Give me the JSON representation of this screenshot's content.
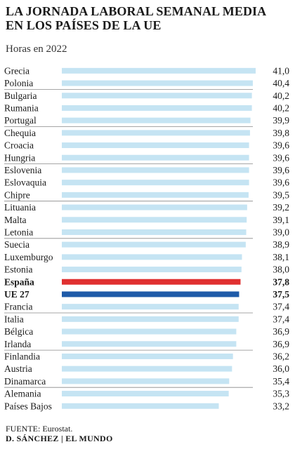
{
  "header": {
    "title_line1": "LA JORNADA LABORAL SEMANAL MEDIA",
    "title_line2": "EN LOS PAÍSES DE LA UE",
    "subtitle": "Horas en 2022"
  },
  "footer": {
    "source": "FUENTE: Eurostat.",
    "credit": "D. SÁNCHEZ | EL MUNDO"
  },
  "colors": {
    "default_bar": "#c5e4f3",
    "spain_bar": "#e03030",
    "eu_bar": "#1e5aa8",
    "separator": "#888888"
  },
  "chart_data": {
    "type": "bar",
    "orientation": "horizontal",
    "categories": [
      "Grecia",
      "Polonia",
      "Bulgaria",
      "Rumania",
      "Portugal",
      "Chequia",
      "Croacia",
      "Hungria",
      "Eslovenia",
      "Eslovaquia",
      "Chipre",
      "Lituania",
      "Malta",
      "Letonia",
      "Suecia",
      "Luxemburgo",
      "Estonia",
      "España",
      "UE 27",
      "Francia",
      "Italia",
      "Bélgica",
      "Irlanda",
      "Finlandia",
      "Austria",
      "Dinamarca",
      "Alemania",
      "Países Bajos"
    ],
    "values": [
      41.0,
      40.4,
      40.2,
      40.2,
      39.9,
      39.8,
      39.6,
      39.6,
      39.6,
      39.6,
      39.5,
      39.2,
      39.1,
      39.0,
      38.9,
      38.1,
      38.0,
      37.8,
      37.5,
      37.4,
      37.4,
      36.9,
      36.9,
      36.2,
      36.0,
      35.4,
      35.3,
      33.2
    ],
    "value_labels": [
      "41,0",
      "40,4",
      "40,2",
      "40,2",
      "39,9",
      "39,8",
      "39,6",
      "39,6",
      "39,6",
      "39,6",
      "39,5",
      "39,2",
      "39,1",
      "39,0",
      "38,9",
      "38,1",
      "38,0",
      "37,8",
      "37,5",
      "37,4",
      "37,4",
      "36,9",
      "36,9",
      "36,2",
      "36,0",
      "35,4",
      "35,3",
      "33,2"
    ],
    "highlight": {
      "España": "spain",
      "UE 27": "eu"
    },
    "group_starts": [
      2,
      5,
      8,
      11,
      14,
      20,
      23,
      26
    ],
    "xlim": [
      0,
      41
    ],
    "grid": false,
    "legend": "none"
  }
}
